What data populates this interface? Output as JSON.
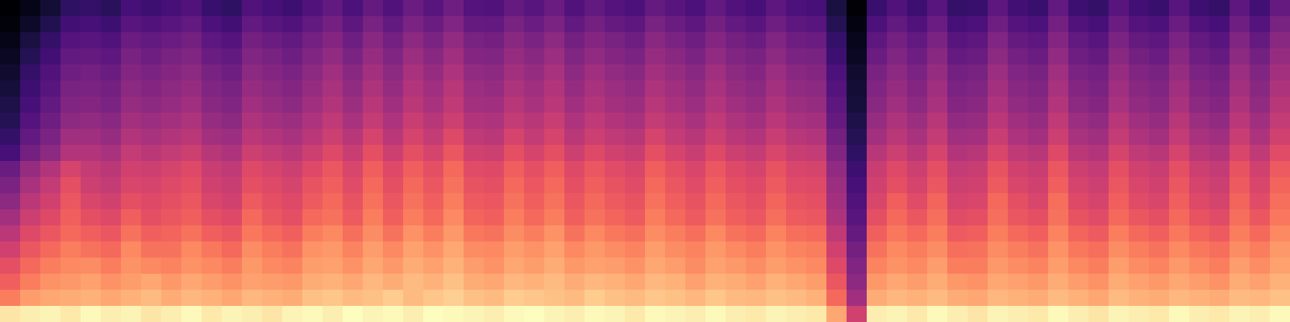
{
  "chart_data": {
    "type": "heatmap",
    "color": "magma",
    "tick_labels": false,
    "z": [
      [
        90,
        92,
        93,
        91,
        94,
        92,
        93,
        90,
        92,
        94,
        91,
        93,
        92,
        90,
        93,
        94,
        92,
        95,
        93,
        94,
        92,
        95,
        94,
        93,
        92,
        94,
        95,
        93,
        92,
        94,
        93,
        91,
        94,
        93,
        92,
        94,
        92,
        91,
        93,
        92,
        91,
        78,
        55,
        92,
        93,
        91,
        94,
        92,
        90,
        93,
        92,
        91,
        94,
        92,
        90,
        93,
        92,
        91,
        94,
        92,
        91,
        93,
        92,
        94
      ],
      [
        70,
        76,
        78,
        79,
        80,
        78,
        80,
        82,
        79,
        81,
        80,
        78,
        81,
        80,
        79,
        83,
        84,
        82,
        83,
        85,
        82,
        84,
        86,
        83,
        82,
        85,
        84,
        83,
        82,
        85,
        83,
        82,
        84,
        83,
        81,
        84,
        82,
        81,
        83,
        82,
        80,
        66,
        44,
        79,
        81,
        80,
        82,
        79,
        78,
        81,
        80,
        79,
        82,
        80,
        78,
        82,
        80,
        79,
        81,
        80,
        79,
        82,
        81,
        83
      ],
      [
        64,
        70,
        74,
        75,
        77,
        74,
        76,
        78,
        75,
        78,
        76,
        74,
        77,
        76,
        75,
        79,
        80,
        78,
        81,
        79,
        82,
        80,
        83,
        79,
        78,
        81,
        80,
        82,
        79,
        81,
        80,
        78,
        81,
        80,
        77,
        80,
        79,
        77,
        80,
        78,
        76,
        62,
        40,
        75,
        78,
        76,
        79,
        75,
        74,
        78,
        77,
        75,
        79,
        76,
        74,
        79,
        77,
        75,
        78,
        76,
        74,
        79,
        77,
        80
      ],
      [
        60,
        66,
        70,
        72,
        73,
        70,
        74,
        72,
        71,
        74,
        72,
        70,
        75,
        72,
        71,
        76,
        77,
        74,
        78,
        75,
        79,
        77,
        80,
        76,
        74,
        78,
        76,
        79,
        75,
        77,
        76,
        74,
        78,
        76,
        73,
        77,
        75,
        73,
        76,
        74,
        72,
        58,
        37,
        71,
        74,
        72,
        76,
        70,
        70,
        75,
        73,
        71,
        76,
        72,
        70,
        76,
        73,
        71,
        75,
        72,
        70,
        76,
        73,
        77
      ],
      [
        55,
        62,
        66,
        70,
        68,
        66,
        72,
        68,
        68,
        72,
        69,
        66,
        73,
        70,
        68,
        74,
        75,
        71,
        76,
        72,
        77,
        74,
        78,
        73,
        72,
        76,
        74,
        77,
        72,
        75,
        73,
        71,
        76,
        73,
        71,
        75,
        72,
        70,
        74,
        71,
        70,
        55,
        34,
        68,
        72,
        70,
        73,
        67,
        68,
        73,
        70,
        68,
        74,
        69,
        67,
        73,
        70,
        68,
        72,
        69,
        67,
        73,
        70,
        75
      ],
      [
        50,
        58,
        62,
        66,
        64,
        62,
        68,
        64,
        65,
        68,
        64,
        62,
        69,
        66,
        64,
        70,
        72,
        67,
        73,
        68,
        74,
        70,
        75,
        69,
        68,
        73,
        70,
        74,
        68,
        72,
        69,
        67,
        73,
        70,
        67,
        72,
        68,
        66,
        71,
        67,
        66,
        51,
        31,
        64,
        69,
        66,
        70,
        63,
        64,
        70,
        66,
        64,
        71,
        65,
        63,
        70,
        66,
        64,
        69,
        65,
        63,
        70,
        66,
        72
      ],
      [
        45,
        54,
        58,
        64,
        60,
        58,
        64,
        60,
        62,
        64,
        60,
        58,
        66,
        62,
        60,
        66,
        68,
        63,
        70,
        64,
        70,
        66,
        72,
        65,
        64,
        70,
        66,
        70,
        64,
        68,
        65,
        63,
        70,
        66,
        63,
        68,
        64,
        62,
        67,
        63,
        62,
        47,
        28,
        60,
        66,
        62,
        67,
        59,
        60,
        67,
        62,
        60,
        68,
        61,
        59,
        66,
        62,
        60,
        66,
        61,
        59,
        67,
        62,
        69
      ],
      [
        40,
        50,
        55,
        62,
        57,
        55,
        60,
        58,
        60,
        62,
        57,
        55,
        63,
        60,
        58,
        63,
        66,
        61,
        68,
        62,
        68,
        64,
        70,
        63,
        62,
        68,
        64,
        68,
        62,
        66,
        63,
        61,
        68,
        64,
        61,
        66,
        62,
        60,
        65,
        61,
        60,
        45,
        26,
        57,
        64,
        59,
        65,
        56,
        57,
        66,
        60,
        57,
        67,
        58,
        56,
        64,
        59,
        57,
        64,
        58,
        56,
        65,
        59,
        67
      ],
      [
        36,
        46,
        52,
        60,
        54,
        52,
        57,
        56,
        58,
        60,
        55,
        53,
        60,
        58,
        56,
        61,
        64,
        59,
        66,
        60,
        66,
        62,
        68,
        61,
        60,
        66,
        62,
        66,
        60,
        64,
        61,
        59,
        66,
        62,
        59,
        64,
        60,
        58,
        63,
        59,
        58,
        43,
        24,
        55,
        60,
        56,
        62,
        54,
        55,
        63,
        57,
        55,
        64,
        56,
        54,
        62,
        57,
        55,
        62,
        56,
        54,
        63,
        57,
        65
      ],
      [
        32,
        42,
        48,
        56,
        52,
        50,
        55,
        54,
        56,
        58,
        53,
        51,
        58,
        56,
        54,
        58,
        62,
        57,
        64,
        58,
        64,
        60,
        66,
        59,
        58,
        64,
        60,
        64,
        58,
        62,
        59,
        57,
        64,
        60,
        57,
        62,
        58,
        56,
        61,
        57,
        56,
        41,
        22,
        53,
        58,
        54,
        60,
        52,
        53,
        61,
        55,
        53,
        62,
        54,
        52,
        60,
        55,
        53,
        60,
        54,
        52,
        61,
        55,
        63
      ],
      [
        24,
        34,
        40,
        48,
        48,
        46,
        52,
        50,
        52,
        54,
        49,
        47,
        54,
        52,
        50,
        54,
        58,
        53,
        60,
        54,
        60,
        56,
        62,
        55,
        54,
        60,
        56,
        60,
        54,
        58,
        55,
        53,
        60,
        56,
        53,
        58,
        54,
        52,
        57,
        53,
        52,
        37,
        19,
        49,
        54,
        50,
        56,
        48,
        49,
        57,
        51,
        49,
        58,
        50,
        48,
        56,
        51,
        49,
        56,
        50,
        48,
        57,
        51,
        59
      ],
      [
        20,
        30,
        36,
        44,
        44,
        42,
        48,
        46,
        48,
        50,
        45,
        43,
        50,
        48,
        46,
        50,
        54,
        49,
        56,
        50,
        56,
        52,
        58,
        51,
        50,
        56,
        52,
        56,
        50,
        54,
        51,
        49,
        56,
        52,
        49,
        54,
        50,
        48,
        53,
        49,
        48,
        34,
        17,
        45,
        50,
        46,
        52,
        44,
        45,
        53,
        47,
        45,
        54,
        46,
        44,
        52,
        47,
        45,
        52,
        46,
        44,
        53,
        47,
        55
      ],
      [
        17,
        27,
        33,
        40,
        41,
        39,
        45,
        43,
        45,
        47,
        42,
        40,
        47,
        45,
        43,
        47,
        51,
        46,
        52,
        47,
        53,
        49,
        54,
        48,
        47,
        52,
        49,
        53,
        47,
        51,
        48,
        46,
        52,
        49,
        46,
        51,
        47,
        45,
        50,
        46,
        45,
        31,
        15,
        42,
        47,
        43,
        49,
        41,
        42,
        50,
        44,
        42,
        51,
        43,
        41,
        49,
        44,
        42,
        49,
        43,
        41,
        50,
        44,
        52
      ],
      [
        15,
        24,
        30,
        37,
        38,
        36,
        42,
        40,
        42,
        44,
        39,
        37,
        44,
        42,
        40,
        44,
        48,
        43,
        49,
        44,
        50,
        46,
        51,
        45,
        44,
        49,
        46,
        50,
        44,
        48,
        45,
        43,
        49,
        46,
        43,
        48,
        44,
        42,
        47,
        43,
        42,
        29,
        13,
        39,
        44,
        40,
        46,
        38,
        39,
        47,
        41,
        39,
        48,
        40,
        38,
        46,
        41,
        39,
        46,
        40,
        38,
        47,
        41,
        49
      ],
      [
        13,
        22,
        28,
        35,
        36,
        34,
        40,
        38,
        40,
        42,
        37,
        35,
        42,
        40,
        38,
        42,
        46,
        41,
        47,
        42,
        48,
        44,
        49,
        43,
        42,
        47,
        44,
        48,
        42,
        46,
        43,
        41,
        47,
        44,
        41,
        46,
        42,
        40,
        45,
        41,
        40,
        27,
        12,
        37,
        42,
        38,
        44,
        36,
        37,
        45,
        39,
        37,
        46,
        38,
        36,
        44,
        39,
        37,
        44,
        38,
        36,
        45,
        39,
        47
      ],
      [
        11,
        20,
        26,
        33,
        34,
        32,
        38,
        36,
        38,
        40,
        35,
        33,
        40,
        38,
        36,
        40,
        44,
        39,
        45,
        40,
        46,
        42,
        47,
        41,
        40,
        45,
        42,
        46,
        40,
        44,
        41,
        39,
        45,
        42,
        39,
        44,
        40,
        38,
        43,
        39,
        38,
        25,
        11,
        35,
        40,
        36,
        42,
        34,
        35,
        43,
        37,
        35,
        44,
        36,
        34,
        42,
        37,
        35,
        42,
        36,
        34,
        43,
        37,
        45
      ],
      [
        9,
        17,
        23,
        30,
        31,
        29,
        35,
        33,
        35,
        37,
        32,
        30,
        37,
        35,
        33,
        37,
        41,
        36,
        42,
        37,
        43,
        39,
        44,
        38,
        37,
        42,
        39,
        43,
        37,
        41,
        38,
        36,
        42,
        39,
        36,
        41,
        37,
        35,
        40,
        36,
        35,
        22,
        9,
        32,
        37,
        33,
        39,
        31,
        32,
        40,
        34,
        32,
        41,
        33,
        31,
        39,
        34,
        32,
        39,
        33,
        31,
        40,
        34,
        42
      ],
      [
        7,
        14,
        20,
        27,
        28,
        26,
        32,
        30,
        32,
        34,
        29,
        27,
        34,
        32,
        30,
        34,
        38,
        33,
        39,
        34,
        40,
        36,
        41,
        35,
        34,
        39,
        36,
        40,
        34,
        38,
        35,
        33,
        39,
        36,
        33,
        38,
        34,
        32,
        37,
        33,
        32,
        20,
        8,
        29,
        34,
        30,
        36,
        28,
        29,
        37,
        31,
        29,
        38,
        30,
        28,
        36,
        31,
        29,
        36,
        30,
        28,
        37,
        31,
        39
      ],
      [
        5,
        10,
        16,
        23,
        24,
        22,
        28,
        26,
        28,
        30,
        25,
        23,
        30,
        28,
        26,
        30,
        34,
        29,
        35,
        30,
        36,
        32,
        37,
        31,
        30,
        35,
        32,
        36,
        30,
        34,
        31,
        29,
        35,
        32,
        29,
        34,
        30,
        28,
        33,
        29,
        28,
        17,
        6,
        25,
        30,
        26,
        32,
        24,
        25,
        33,
        27,
        25,
        34,
        26,
        24,
        32,
        27,
        25,
        32,
        26,
        24,
        33,
        27,
        35
      ],
      [
        3,
        7,
        12,
        19,
        20,
        18,
        24,
        22,
        24,
        26,
        21,
        19,
        26,
        24,
        22,
        26,
        30,
        25,
        31,
        26,
        32,
        28,
        33,
        27,
        26,
        31,
        28,
        32,
        26,
        30,
        27,
        25,
        31,
        28,
        25,
        30,
        26,
        24,
        29,
        25,
        24,
        14,
        4,
        21,
        26,
        22,
        28,
        20,
        21,
        29,
        23,
        21,
        30,
        22,
        20,
        28,
        23,
        21,
        28,
        22,
        20,
        29,
        23,
        31
      ]
    ]
  }
}
